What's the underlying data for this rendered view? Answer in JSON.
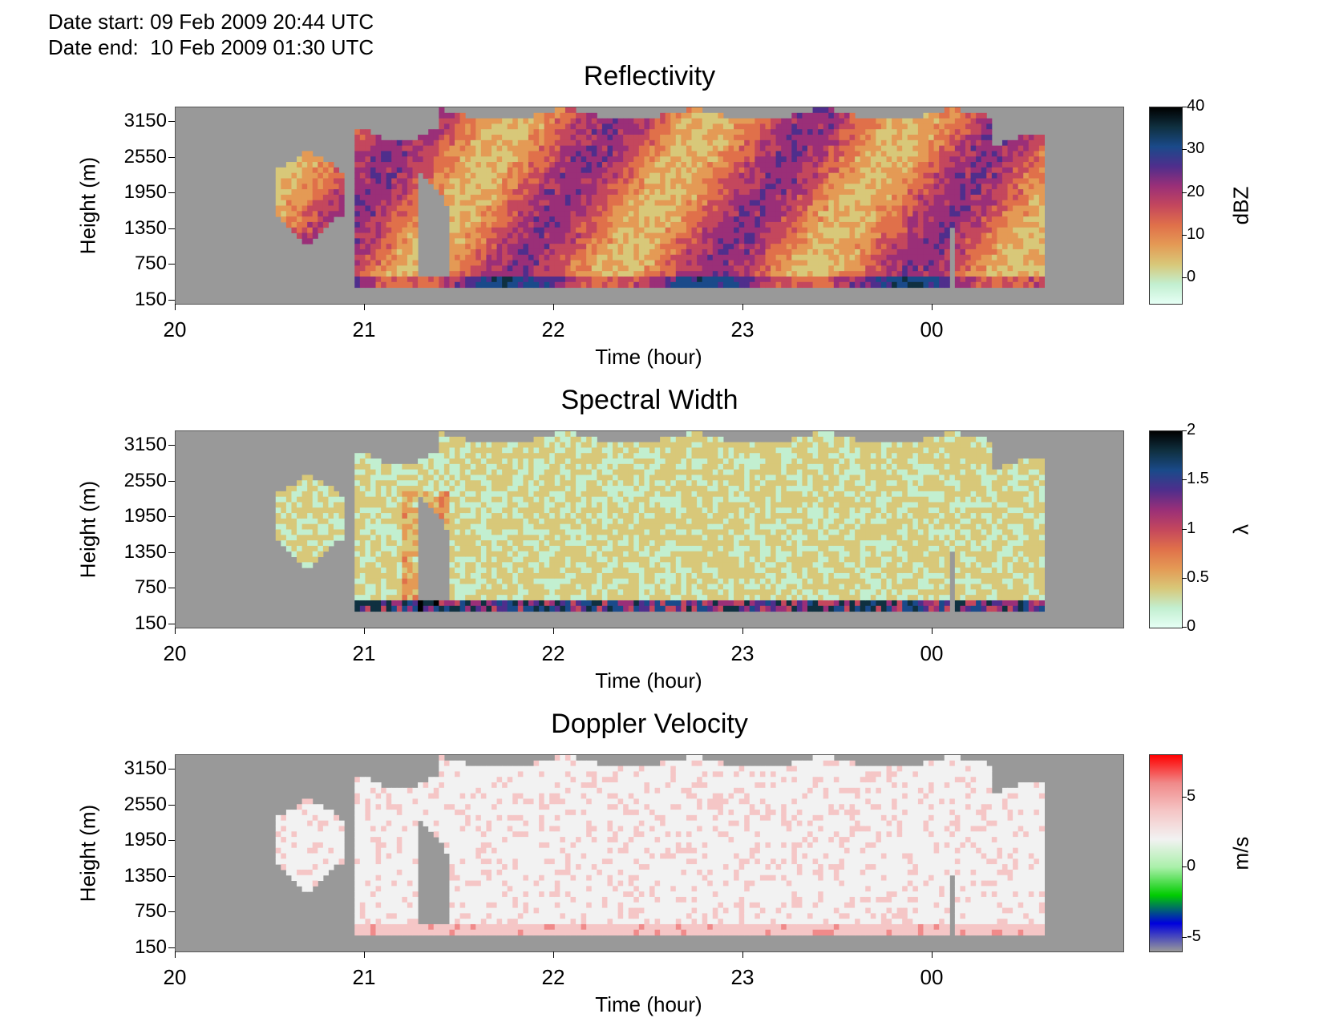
{
  "header": {
    "date_start": "Date start: 09 Feb 2009 20:44 UTC",
    "date_end": "Date end:  10 Feb 2009 01:30 UTC"
  },
  "chart_data": [
    {
      "type": "heatmap",
      "title": "Reflectivity",
      "xlabel": "Time (hour)",
      "ylabel": "Height (m)",
      "x_ticks": [
        "20",
        "21",
        "22",
        "23",
        "00"
      ],
      "y_ticks": [
        "3150",
        "2550",
        "1950",
        "1350",
        "750",
        "150"
      ],
      "colorbar": {
        "unit": "dBZ",
        "ticks": [
          "40",
          "30",
          "20",
          "10",
          "0"
        ],
        "range": [
          -6,
          40
        ],
        "colors": [
          "#e6fff5",
          "#c2efd0",
          "#d8c879",
          "#e49a55",
          "#e0704a",
          "#c4475d",
          "#9a2f78",
          "#4f2e8c",
          "#1a4a8a",
          "#0f3040",
          "#000000"
        ]
      },
      "background": "#999999"
    },
    {
      "type": "heatmap",
      "title": "Spectral Width",
      "xlabel": "Time (hour)",
      "ylabel": "Height (m)",
      "x_ticks": [
        "20",
        "21",
        "22",
        "23",
        "00"
      ],
      "y_ticks": [
        "3150",
        "2550",
        "1950",
        "1350",
        "750",
        "150"
      ],
      "colorbar": {
        "unit": "λ",
        "ticks": [
          "2",
          "1.5",
          "1",
          "0.5",
          "0"
        ],
        "range": [
          0,
          2
        ],
        "colors": [
          "#e6fff5",
          "#c2efd0",
          "#d8c879",
          "#e49a55",
          "#e0704a",
          "#c4475d",
          "#9a2f78",
          "#4f2e8c",
          "#1a4a8a",
          "#0f3040",
          "#000000"
        ]
      },
      "background": "#999999"
    },
    {
      "type": "heatmap",
      "title": "Doppler Velocity",
      "xlabel": "Time (hour)",
      "ylabel": "Height (m)",
      "x_ticks": [
        "20",
        "21",
        "22",
        "23",
        "00"
      ],
      "y_ticks": [
        "3150",
        "2550",
        "1950",
        "1350",
        "750",
        "150"
      ],
      "colorbar": {
        "unit": "m/s",
        "ticks": [
          "5",
          "0",
          "-5"
        ],
        "range": [
          -6,
          8
        ],
        "colors": [
          "#999999",
          "#0000dd",
          "#00cc00",
          "#aaf0aa",
          "#f2f2f2",
          "#f5c6c6",
          "#f08a8a",
          "#ff0000"
        ]
      },
      "background": "#999999"
    }
  ]
}
